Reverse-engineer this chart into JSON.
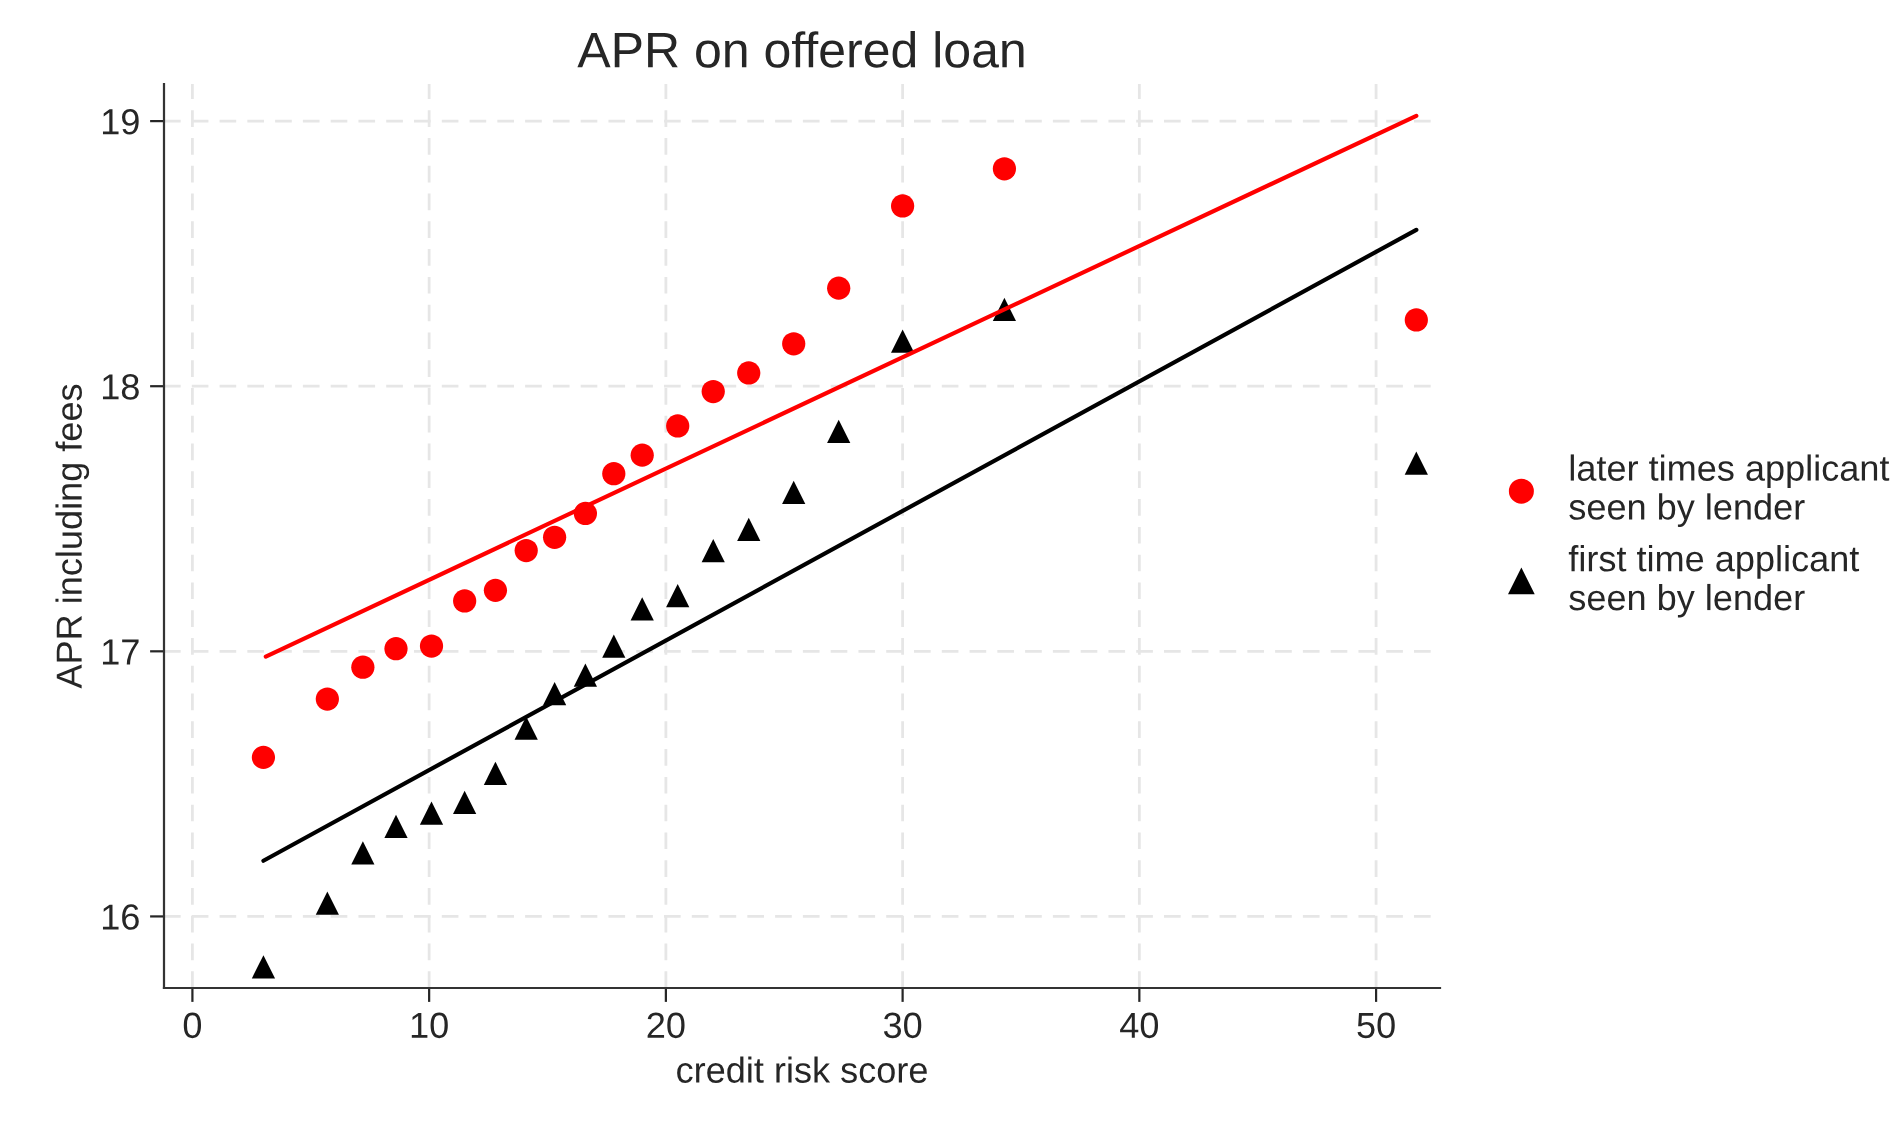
{
  "chart_data": {
    "type": "scatter",
    "title": "APR on offered loan",
    "xlabel": "credit risk score",
    "ylabel": "APR including fees",
    "x": [
      3.0,
      5.7,
      7.2,
      8.6,
      10.1,
      11.5,
      12.8,
      14.1,
      15.3,
      16.6,
      17.8,
      19.0,
      20.5,
      22.0,
      23.5,
      25.4,
      27.3,
      30.0,
      34.3,
      51.7
    ],
    "series": [
      {
        "name": "later times applicant\nseen by lender",
        "color": "#ff0000",
        "marker": "circle",
        "values": [
          16.6,
          16.82,
          16.94,
          17.01,
          17.02,
          17.19,
          17.23,
          17.38,
          17.43,
          17.52,
          17.67,
          17.74,
          17.85,
          17.98,
          18.05,
          18.16,
          18.37,
          18.68,
          18.82,
          18.25
        ]
      },
      {
        "name": "first time applicant\nseen by lender",
        "color": "#000000",
        "marker": "triangle",
        "values": [
          15.81,
          16.05,
          16.24,
          16.34,
          16.39,
          16.43,
          16.54,
          16.71,
          16.84,
          16.91,
          17.02,
          17.16,
          17.21,
          17.38,
          17.46,
          17.6,
          17.83,
          18.17,
          18.29,
          17.71
        ]
      },
      {
        "type": "line",
        "color": "#ff0000",
        "marker": "none",
        "x": [
          3.1,
          51.7
        ],
        "values": [
          16.98,
          19.02
        ]
      },
      {
        "type": "line",
        "color": "#000000",
        "marker": "none",
        "x": [
          3.0,
          51.7
        ],
        "values": [
          16.21,
          18.59
        ]
      }
    ],
    "xlim": [
      -1.2,
      52.7
    ],
    "xticks": [
      0,
      10,
      20,
      30,
      40,
      50
    ],
    "ylim": [
      15.73,
      19.14
    ],
    "yticks": [
      16,
      17,
      18,
      19
    ],
    "grid": true,
    "legend": "right"
  }
}
